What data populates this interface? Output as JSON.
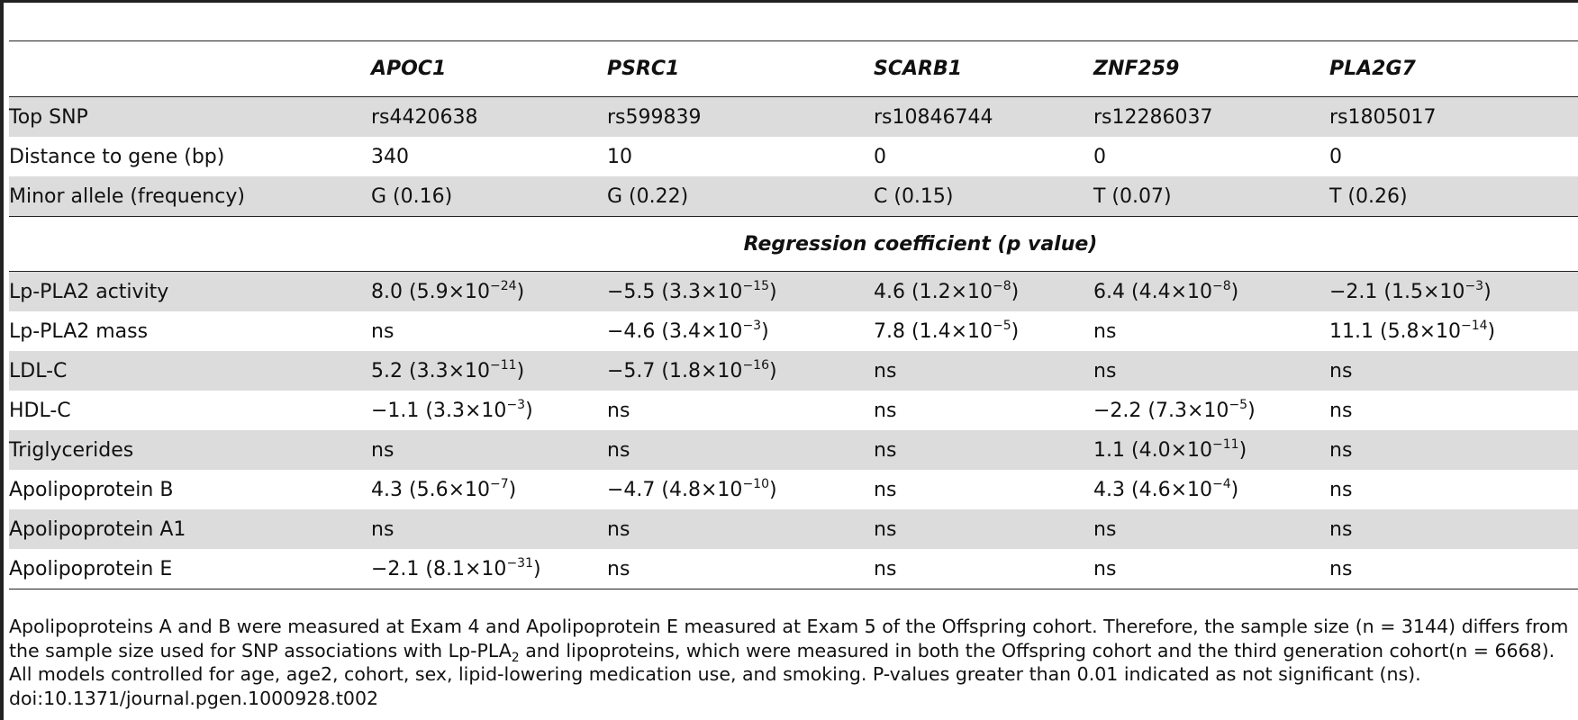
{
  "columns": [
    "",
    "APOC1",
    "PSRC1",
    "SCARB1",
    "ZNF259",
    "PLA2G7"
  ],
  "info_rows": [
    {
      "label": "Top SNP",
      "cells": [
        "rs4420638",
        "rs599839",
        "rs10846744",
        "rs12286037",
        "rs1805017"
      ]
    },
    {
      "label": "Distance to gene (bp)",
      "cells": [
        "340",
        "10",
        "0",
        "0",
        "0"
      ]
    },
    {
      "label": "Minor allele (frequency)",
      "cells": [
        "G (0.16)",
        "G (0.22)",
        "C (0.15)",
        "T (0.07)",
        "T (0.26)"
      ]
    }
  ],
  "section_title": "Regression coefficient (p value)",
  "not_significant": "ns",
  "times": "×10",
  "coef_rows": [
    {
      "label": "Lp-PLA2 activity",
      "cells": [
        {
          "coef": "8.0",
          "mant": "5.9",
          "exp": "−24"
        },
        {
          "coef": "−5.5",
          "mant": "3.3",
          "exp": "−15"
        },
        {
          "coef": "4.6",
          "mant": "1.2",
          "exp": "−8"
        },
        {
          "coef": "6.4",
          "mant": "4.4",
          "exp": "−8"
        },
        {
          "coef": "−2.1",
          "mant": "1.5",
          "exp": "−3"
        }
      ]
    },
    {
      "label": "Lp-PLA2 mass",
      "cells": [
        null,
        {
          "coef": "−4.6",
          "mant": "3.4",
          "exp": "−3"
        },
        {
          "coef": "7.8",
          "mant": "1.4",
          "exp": "−5"
        },
        null,
        {
          "coef": "11.1",
          "mant": "5.8",
          "exp": "−14"
        }
      ]
    },
    {
      "label": "LDL-C",
      "cells": [
        {
          "coef": "5.2",
          "mant": "3.3",
          "exp": "−11"
        },
        {
          "coef": "−5.7",
          "mant": "1.8",
          "exp": "−16"
        },
        null,
        null,
        null
      ]
    },
    {
      "label": "HDL-C",
      "cells": [
        {
          "coef": "−1.1",
          "mant": "3.3",
          "exp": "−3"
        },
        null,
        null,
        {
          "coef": "−2.2",
          "mant": "7.3",
          "exp": "−5"
        },
        null
      ]
    },
    {
      "label": "Triglycerides",
      "cells": [
        null,
        null,
        null,
        {
          "coef": "1.1",
          "mant": "4.0",
          "exp": "−11"
        },
        null
      ]
    },
    {
      "label": "Apolipoprotein B",
      "cells": [
        {
          "coef": "4.3",
          "mant": "5.6",
          "exp": "−7"
        },
        {
          "coef": "−4.7",
          "mant": "4.8",
          "exp": "−10"
        },
        null,
        {
          "coef": "4.3",
          "mant": "4.6",
          "exp": "−4"
        },
        null
      ]
    },
    {
      "label": "Apolipoprotein A1",
      "cells": [
        null,
        null,
        null,
        null,
        null
      ]
    },
    {
      "label": "Apolipoprotein E",
      "cells": [
        {
          "coef": "−2.1",
          "mant": "8.1",
          "exp": "−31"
        },
        null,
        null,
        null,
        null
      ]
    }
  ],
  "footnote": {
    "line1": "Apolipoproteins A and B were measured at Exam 4 and Apolipoprotein E measured at Exam 5 of the Offspring cohort. Therefore, the sample size (n = 3144) differs from",
    "line2_pre": "the sample size used for SNP associations with Lp-PLA",
    "line2_sub": "2",
    "line2_post": " and lipoproteins, which were measured in both the Offspring cohort and the third generation cohort(n = 6668).",
    "line3": "All models controlled for age, age2, cohort, sex, lipid-lowering medication use, and smoking. P-values greater than 0.01 indicated as not significant (ns).",
    "doi": "doi:10.1371/journal.pgen.1000928.t002"
  }
}
